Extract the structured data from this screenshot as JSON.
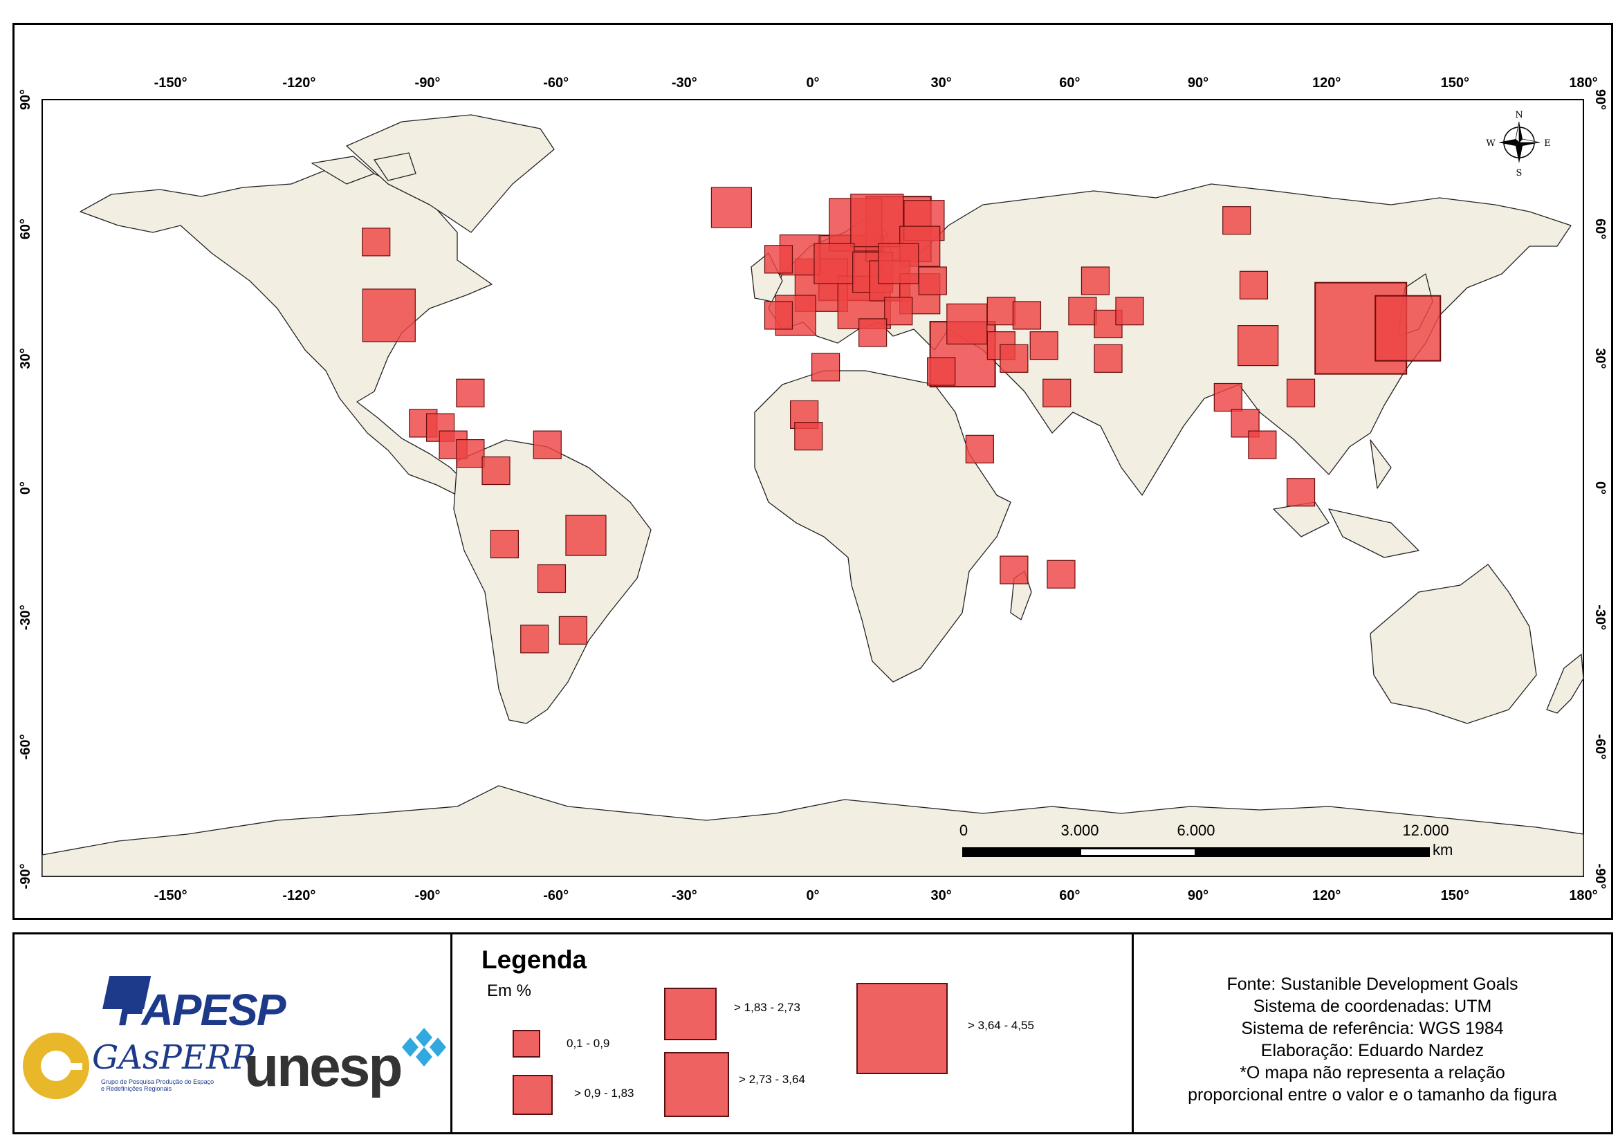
{
  "map": {
    "lon_ticks": [
      "-150°",
      "-120°",
      "-90°",
      "-60°",
      "-30°",
      "0°",
      "30°",
      "60°",
      "90°",
      "120°",
      "150°",
      "180°"
    ],
    "lat_ticks": [
      "90°",
      "60°",
      "30°",
      "0°",
      "-30°",
      "-60°",
      "-90°"
    ],
    "compass": {
      "n": "N",
      "s": "S",
      "e": "E",
      "w": "W"
    },
    "scalebar": {
      "labels": [
        "0",
        "3.000",
        "6.000",
        "12.000"
      ],
      "unit": "km"
    },
    "colors": {
      "land": "#f2efe2",
      "ocean": "#ffffff",
      "marker": "#ee4444",
      "marker_border": "#6a0c0c"
    }
  },
  "chart_data": {
    "type": "proportional-symbol-map",
    "value_unit": "%",
    "classes": [
      "0,1 - 0,9",
      "> 0,9 - 1,83",
      "> 1,83 - 2,73",
      "> 2,73 - 3,64",
      "> 3,64 - 4,55"
    ],
    "points": [
      {
        "lon": -102,
        "lat": 57,
        "cls": 0
      },
      {
        "lon": -99,
        "lat": 40,
        "cls": 2
      },
      {
        "lon": -80,
        "lat": 22,
        "cls": 0
      },
      {
        "lon": -91,
        "lat": 15,
        "cls": 0
      },
      {
        "lon": -87,
        "lat": 14,
        "cls": 0
      },
      {
        "lon": -84,
        "lat": 10,
        "cls": 0
      },
      {
        "lon": -80,
        "lat": 8,
        "cls": 0
      },
      {
        "lon": -74,
        "lat": 4,
        "cls": 0
      },
      {
        "lon": -62,
        "lat": 10,
        "cls": 0
      },
      {
        "lon": -72,
        "lat": -13,
        "cls": 0
      },
      {
        "lon": -53,
        "lat": -11,
        "cls": 1
      },
      {
        "lon": -61,
        "lat": -21,
        "cls": 0
      },
      {
        "lon": -65,
        "lat": -35,
        "cls": 0
      },
      {
        "lon": -56,
        "lat": -33,
        "cls": 0
      },
      {
        "lon": -19,
        "lat": 65,
        "cls": 1
      },
      {
        "lon": -8,
        "lat": 53,
        "cls": 0
      },
      {
        "lon": -3,
        "lat": 54,
        "cls": 1
      },
      {
        "lon": -4,
        "lat": 40,
        "cls": 1
      },
      {
        "lon": -8,
        "lat": 40,
        "cls": 0
      },
      {
        "lon": 2,
        "lat": 47,
        "cls": 2
      },
      {
        "lon": 5,
        "lat": 52,
        "cls": 1
      },
      {
        "lon": 9,
        "lat": 51,
        "cls": 3
      },
      {
        "lon": 14,
        "lat": 50,
        "cls": 1
      },
      {
        "lon": 12,
        "lat": 43,
        "cls": 2
      },
      {
        "lon": 10,
        "lat": 61,
        "cls": 2
      },
      {
        "lon": 15,
        "lat": 62,
        "cls": 2
      },
      {
        "lon": 20,
        "lat": 60,
        "cls": 3
      },
      {
        "lon": 26,
        "lat": 62,
        "cls": 1
      },
      {
        "lon": 25,
        "lat": 56,
        "cls": 1
      },
      {
        "lon": 18,
        "lat": 48,
        "cls": 1
      },
      {
        "lon": 25,
        "lat": 45,
        "cls": 1
      },
      {
        "lon": 20,
        "lat": 41,
        "cls": 0
      },
      {
        "lon": 28,
        "lat": 48,
        "cls": 0
      },
      {
        "lon": 14,
        "lat": 36,
        "cls": 0
      },
      {
        "lon": 20,
        "lat": 52,
        "cls": 1
      },
      {
        "lon": 3,
        "lat": 28,
        "cls": 0
      },
      {
        "lon": -2,
        "lat": 17,
        "cls": 0
      },
      {
        "lon": -1,
        "lat": 12,
        "cls": 0
      },
      {
        "lon": 39,
        "lat": 9,
        "cls": 0
      },
      {
        "lon": 47,
        "lat": -19,
        "cls": 0
      },
      {
        "lon": 58,
        "lat": -20,
        "cls": 0
      },
      {
        "lon": 35,
        "lat": 31,
        "cls": 3
      },
      {
        "lon": 36,
        "lat": 38,
        "cls": 1
      },
      {
        "lon": 30,
        "lat": 27,
        "cls": 0
      },
      {
        "lon": 44,
        "lat": 41,
        "cls": 0
      },
      {
        "lon": 50,
        "lat": 40,
        "cls": 0
      },
      {
        "lon": 44,
        "lat": 33,
        "cls": 0
      },
      {
        "lon": 47,
        "lat": 30,
        "cls": 0
      },
      {
        "lon": 54,
        "lat": 33,
        "cls": 0
      },
      {
        "lon": 57,
        "lat": 22,
        "cls": 0
      },
      {
        "lon": 66,
        "lat": 48,
        "cls": 0
      },
      {
        "lon": 63,
        "lat": 41,
        "cls": 0
      },
      {
        "lon": 69,
        "lat": 38,
        "cls": 0
      },
      {
        "lon": 74,
        "lat": 41,
        "cls": 0
      },
      {
        "lon": 69,
        "lat": 30,
        "cls": 0
      },
      {
        "lon": 99,
        "lat": 62,
        "cls": 0
      },
      {
        "lon": 103,
        "lat": 47,
        "cls": 0
      },
      {
        "lon": 104,
        "lat": 33,
        "cls": 1
      },
      {
        "lon": 97,
        "lat": 21,
        "cls": 0
      },
      {
        "lon": 101,
        "lat": 15,
        "cls": 0
      },
      {
        "lon": 105,
        "lat": 10,
        "cls": 0
      },
      {
        "lon": 114,
        "lat": 22,
        "cls": 0
      },
      {
        "lon": 114,
        "lat": -1,
        "cls": 0
      },
      {
        "lon": 128,
        "lat": 37,
        "cls": 4
      },
      {
        "lon": 139,
        "lat": 37,
        "cls": 3
      }
    ]
  },
  "legend": {
    "title": "Legenda",
    "subtitle": "Em %",
    "items": [
      "0,1 - 0,9",
      "> 0,9 - 1,83",
      "> 1,83 - 2,73",
      "> 2,73 - 3,64",
      "> 3,64 - 4,55"
    ]
  },
  "source": {
    "lines": [
      "Fonte: Sustanible Development Goals",
      "Sistema de coordenadas: UTM",
      "Sistema de referência: WGS 1984",
      "Elaboração: Eduardo Nardez",
      "*O mapa não representa a relação",
      "proporcional entre o valor e o tamanho da figura"
    ]
  },
  "logos": {
    "fapesp": "FAPESP",
    "unesp": "unesp",
    "gasperr": "GAsPERR",
    "gasperr_sub": "Grupo de Pesquisa Produção do Espaço e Redefinições Regionais"
  }
}
